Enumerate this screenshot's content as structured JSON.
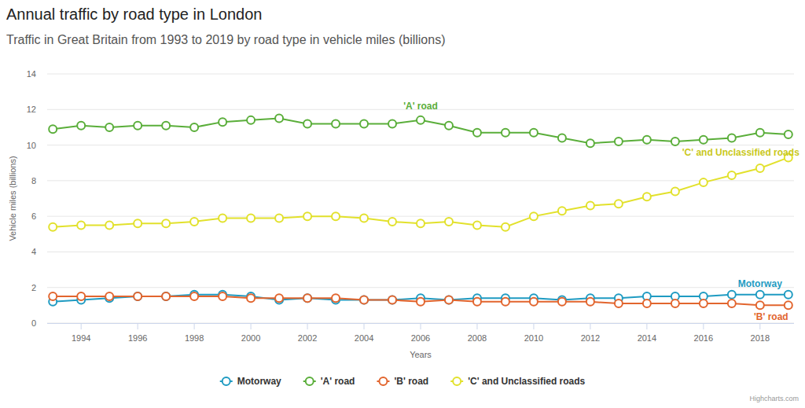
{
  "chart_data": {
    "type": "line",
    "title": "Annual traffic by road type in London",
    "subtitle": "Traffic in Great Britain from 1993 to 2019 by road type in vehicle miles (billions)",
    "x_label": "Years",
    "y_label": "Vehicle miles (billions)",
    "credits": "Highcharts.com",
    "x": [
      1993,
      1994,
      1995,
      1996,
      1997,
      1998,
      1999,
      2000,
      2001,
      2002,
      2003,
      2004,
      2005,
      2006,
      2007,
      2008,
      2009,
      2010,
      2011,
      2012,
      2013,
      2014,
      2015,
      2016,
      2017,
      2018,
      2019
    ],
    "xlim": [
      1992.8,
      2019.2
    ],
    "xticks": [
      1994,
      1996,
      1998,
      2000,
      2002,
      2004,
      2006,
      2008,
      2010,
      2012,
      2014,
      2016,
      2018
    ],
    "ylim": [
      0,
      14
    ],
    "yticks": [
      0,
      2,
      4,
      6,
      8,
      10,
      12,
      14
    ],
    "grid": true,
    "legend": "bottom",
    "marker": "circle",
    "series": [
      {
        "name": "Motorway",
        "color": "#1f9bc2",
        "values": [
          1.2,
          1.3,
          1.4,
          1.5,
          1.5,
          1.6,
          1.6,
          1.5,
          1.3,
          1.4,
          1.3,
          1.3,
          1.3,
          1.4,
          1.3,
          1.4,
          1.4,
          1.4,
          1.3,
          1.4,
          1.4,
          1.5,
          1.5,
          1.5,
          1.6,
          1.6,
          1.6
        ]
      },
      {
        "name": "'A' road",
        "color": "#5aae3a",
        "values": [
          10.9,
          11.1,
          11.0,
          11.1,
          11.1,
          11.0,
          11.3,
          11.4,
          11.5,
          11.2,
          11.2,
          11.2,
          11.2,
          11.4,
          11.1,
          10.7,
          10.7,
          10.7,
          10.4,
          10.1,
          10.2,
          10.3,
          10.2,
          10.3,
          10.4,
          10.7,
          10.6
        ]
      },
      {
        "name": "'B' road",
        "color": "#e2652e",
        "values": [
          1.5,
          1.5,
          1.5,
          1.5,
          1.5,
          1.5,
          1.5,
          1.4,
          1.4,
          1.4,
          1.4,
          1.3,
          1.3,
          1.2,
          1.3,
          1.2,
          1.2,
          1.2,
          1.2,
          1.2,
          1.1,
          1.1,
          1.1,
          1.1,
          1.1,
          1.0,
          1.0
        ]
      },
      {
        "name": "'C' and Unclassified roads",
        "color": "#e2e12c",
        "values": [
          5.4,
          5.5,
          5.5,
          5.6,
          5.6,
          5.7,
          5.9,
          5.9,
          5.9,
          6.0,
          6.0,
          5.9,
          5.7,
          5.6,
          5.7,
          5.5,
          5.4,
          6.0,
          6.3,
          6.6,
          6.7,
          7.1,
          7.4,
          7.9,
          8.3,
          8.7,
          9.3
        ]
      }
    ]
  }
}
